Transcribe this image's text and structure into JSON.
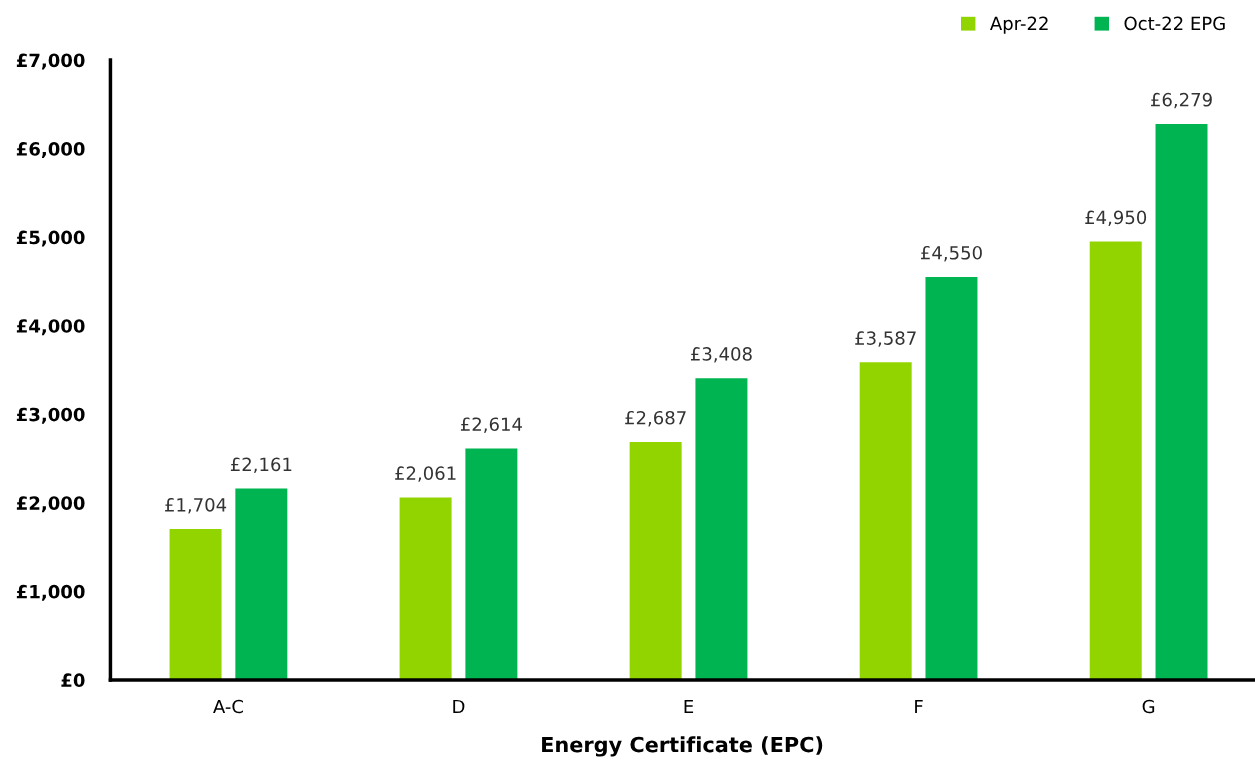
{
  "chart_data": {
    "type": "bar",
    "xlabel": "Energy Certificate (EPC)",
    "categories": [
      "A-C",
      "D",
      "E",
      "F",
      "G"
    ],
    "series": [
      {
        "name": "Apr-22",
        "color": "#92d400",
        "values": [
          1704,
          2061,
          2687,
          3587,
          4950
        ],
        "value_labels": [
          "£1,704",
          "£2,061",
          "£2,687",
          "£3,587",
          "£4,950"
        ]
      },
      {
        "name": "Oct-22 EPG",
        "color": "#00b451",
        "values": [
          2161,
          2614,
          3408,
          4550,
          6279
        ],
        "value_labels": [
          "£2,161",
          "£2,614",
          "£3,408",
          "£4,550",
          "£6,279"
        ]
      }
    ],
    "ylim": [
      0,
      7000
    ],
    "yticks": [
      {
        "value": 0,
        "label": "£0"
      },
      {
        "value": 1000,
        "label": "£1,000"
      },
      {
        "value": 2000,
        "label": "£2,000"
      },
      {
        "value": 3000,
        "label": "£3,000"
      },
      {
        "value": 4000,
        "label": "£4,000"
      },
      {
        "value": 5000,
        "label": "£5,000"
      },
      {
        "value": 6000,
        "label": "£6,000"
      },
      {
        "value": 7000,
        "label": "£7,000"
      }
    ],
    "grid": false,
    "legend": "top right"
  }
}
